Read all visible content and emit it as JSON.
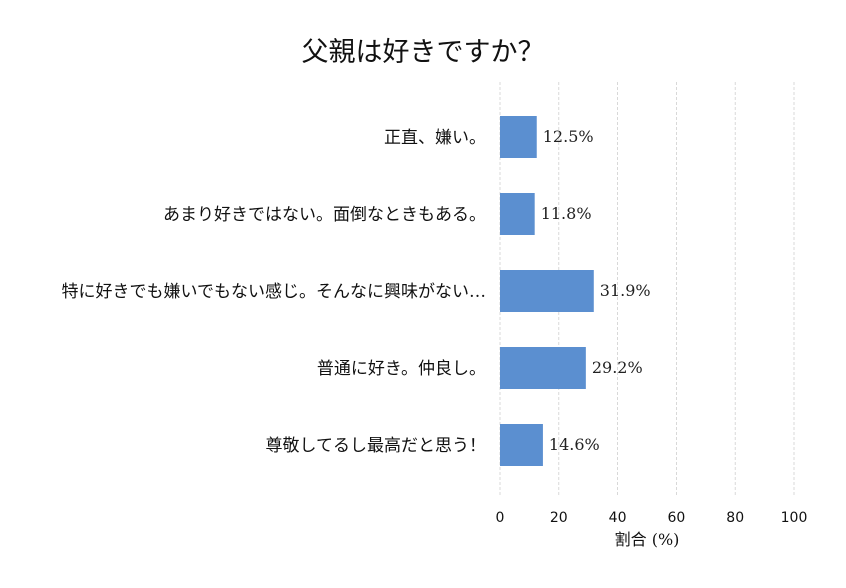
{
  "chart_data": {
    "type": "bar",
    "orientation": "horizontal",
    "title": "父親は好きですか？",
    "xlabel": "割合 (%)",
    "ylabel": "",
    "xlim": [
      0,
      100
    ],
    "xticks": [
      0,
      20,
      40,
      60,
      80,
      100
    ],
    "grid": "vertical dashed",
    "bar_color": "#5b8fd0",
    "categories": [
      "正直、嫌い。",
      "あまり好きではない。面倒なときもある。",
      "特に好きでも嫌いでもない感じ。そんなに興味がない…",
      "普通に好き。仲良し。",
      "尊敬してるし最高だと思う！"
    ],
    "values": [
      12.5,
      11.8,
      31.9,
      29.2,
      14.6
    ],
    "value_labels": [
      "12.5%",
      "11.8%",
      "31.9%",
      "29.2%",
      "14.6%"
    ]
  }
}
